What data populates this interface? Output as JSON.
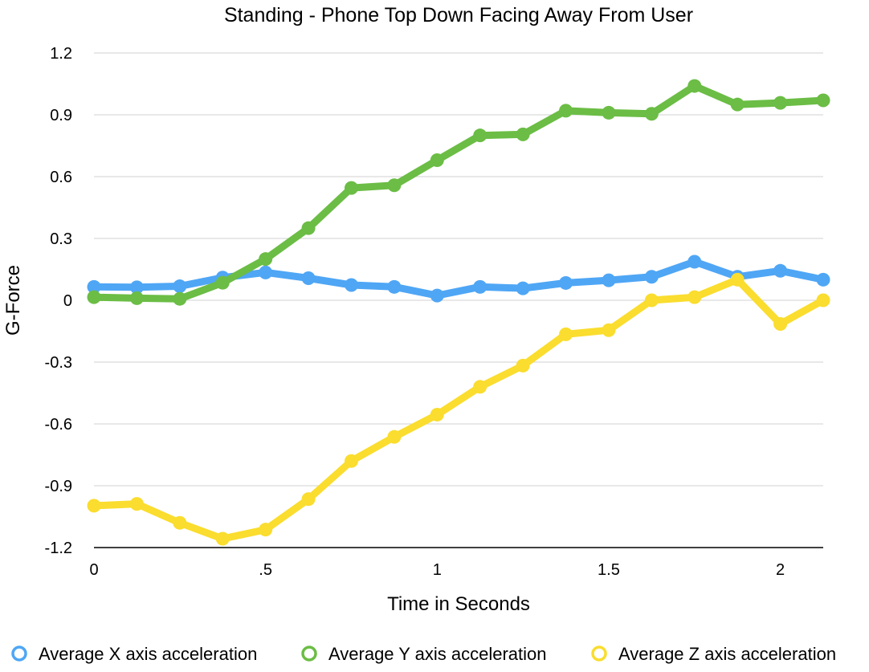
{
  "chart_data": {
    "type": "line",
    "title": "Standing - Phone Top Down Facing Away From User",
    "xlabel": "Time in Seconds",
    "ylabel": "G-Force",
    "xlim": [
      0,
      2.125
    ],
    "ylim": [
      -1.2,
      1.2
    ],
    "x_ticks": [
      0,
      0.5,
      1,
      1.5,
      2
    ],
    "x_tick_labels": [
      "0",
      ".5",
      "1",
      "1.5",
      "2"
    ],
    "y_ticks": [
      1.2,
      0.9,
      0.6,
      0.3,
      0,
      -0.3,
      -0.6,
      -0.9,
      -1.2
    ],
    "y_tick_labels": [
      "1.2",
      "0.9",
      "0.6",
      "0.3",
      "0",
      "-0.3",
      "-0.6",
      "-0.9",
      "-1.2"
    ],
    "grid": true,
    "legend_position": "bottom",
    "x": [
      0,
      0.125,
      0.25,
      0.375,
      0.5,
      0.625,
      0.75,
      0.875,
      1,
      1.125,
      1.25,
      1.375,
      1.5,
      1.625,
      1.75,
      1.875,
      2,
      2.125
    ],
    "series": [
      {
        "name": "Average X axis acceleration",
        "color": "#4fa6f5",
        "values": [
          0.065,
          0.063,
          0.068,
          0.11,
          0.135,
          0.107,
          0.074,
          0.065,
          0.023,
          0.065,
          0.058,
          0.084,
          0.097,
          0.114,
          0.187,
          0.114,
          0.143,
          0.1
        ]
      },
      {
        "name": "Average Y axis acceleration",
        "color": "#6bbd45",
        "values": [
          0.015,
          0.01,
          0.007,
          0.085,
          0.2,
          0.35,
          0.545,
          0.558,
          0.68,
          0.8,
          0.805,
          0.92,
          0.91,
          0.905,
          1.04,
          0.95,
          0.958,
          0.97
        ]
      },
      {
        "name": "Average Z axis acceleration",
        "color": "#fadd2e",
        "values": [
          -0.997,
          -0.988,
          -1.08,
          -1.157,
          -1.113,
          -0.965,
          -0.78,
          -0.663,
          -0.555,
          -0.42,
          -0.317,
          -0.165,
          -0.145,
          0,
          0.015,
          0.1,
          -0.115,
          0
        ]
      }
    ]
  }
}
